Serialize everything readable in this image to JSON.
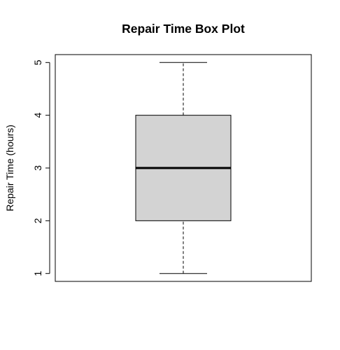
{
  "chart_data": {
    "type": "box",
    "title": "Repair Time Box Plot",
    "xlabel": "",
    "ylabel": "Repair Time (hours)",
    "ylim": [
      0.85,
      5.15
    ],
    "yticks": [
      1,
      2,
      3,
      4,
      5
    ],
    "box": {
      "min": 1,
      "q1": 2,
      "median": 3,
      "q3": 4,
      "max": 5
    },
    "box_fill": "#d3d3d3",
    "line_color": "#000000",
    "grid": false
  }
}
